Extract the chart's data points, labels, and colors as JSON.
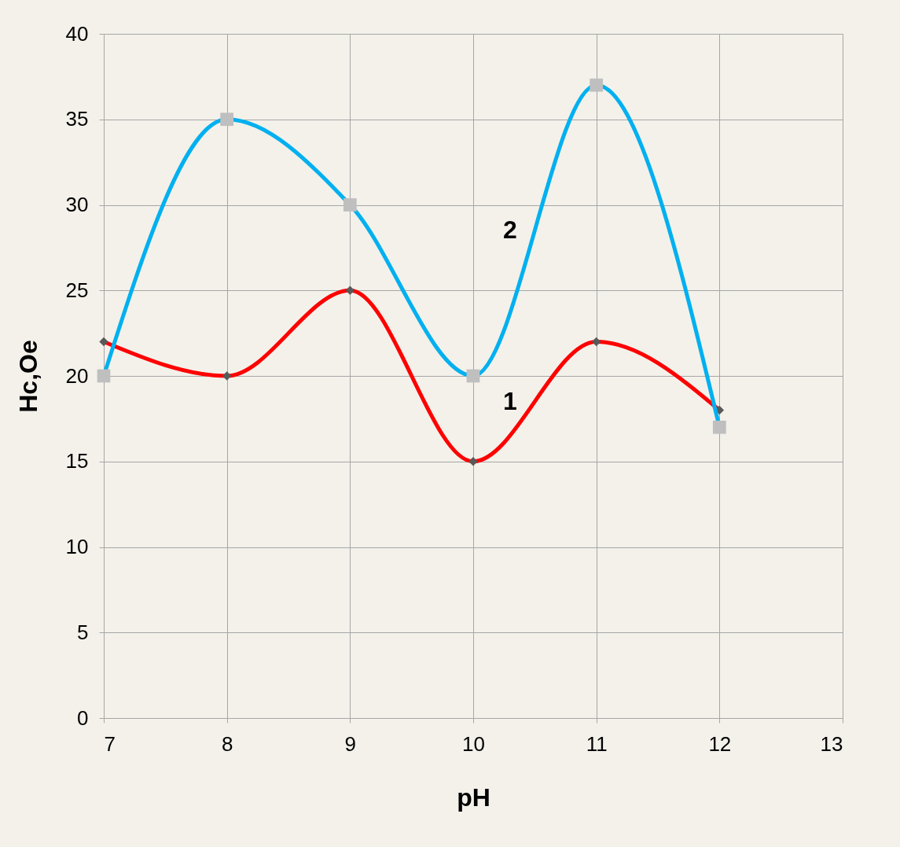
{
  "chart_data": {
    "type": "line",
    "xlabel": "pH",
    "ylabel": "Hc,Oe",
    "x": [
      7,
      8,
      9,
      10,
      11,
      12
    ],
    "series": [
      {
        "name": "1",
        "color": "#ff0000",
        "marker": "diamond",
        "values": [
          22,
          20,
          25,
          15,
          22,
          18
        ]
      },
      {
        "name": "2",
        "color": "#00b0f0",
        "marker": "square",
        "values": [
          20,
          35,
          30,
          20,
          37,
          17
        ]
      }
    ],
    "xlim": [
      7,
      13
    ],
    "xticks": [
      7,
      8,
      9,
      10,
      11,
      12,
      13
    ],
    "ylim": [
      0,
      40
    ],
    "yticks": [
      0,
      5,
      10,
      15,
      20,
      25,
      30,
      35,
      40
    ],
    "grid": true
  }
}
